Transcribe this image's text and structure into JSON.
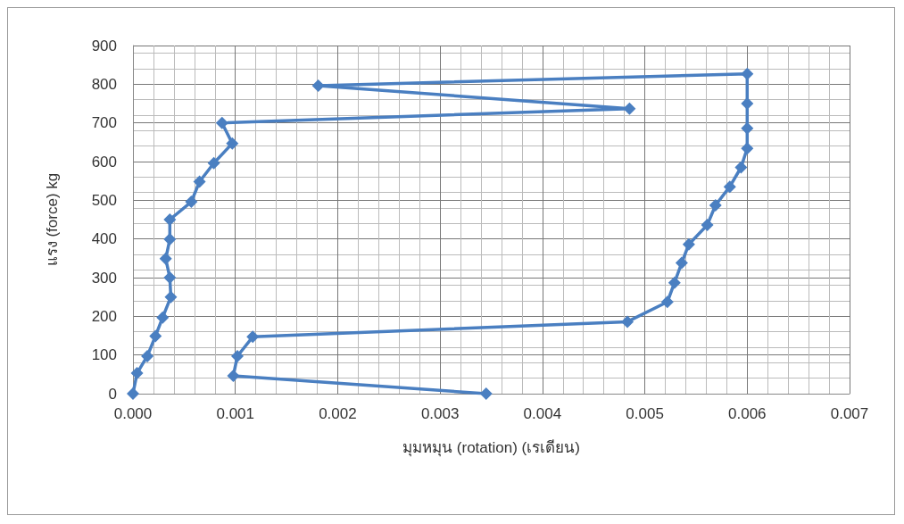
{
  "chart_data": {
    "type": "line",
    "xlabel": "มุมหมุน (rotation) (เรเดียน)",
    "ylabel": "แรง (force) kg",
    "series": [
      {
        "color": "#4a7fc1",
        "x": [
          0,
          4e-05,
          0.00014,
          0.00022,
          0.00029,
          0.00037,
          0.00036,
          0.00032,
          0.00036,
          0.00036,
          0.00057,
          0.00065,
          0.00079,
          0.00097,
          0.00087,
          0.00485,
          0.00181,
          0.006,
          0.006,
          0.006,
          0.006,
          0.00594,
          0.00583,
          0.00569,
          0.00561,
          0.00543,
          0.00536,
          0.00529,
          0.00522,
          0.00483,
          0.00117,
          0.00102,
          0.00098,
          0.00345
        ],
        "values": [
          0,
          53,
          97,
          149,
          197,
          250,
          300,
          349,
          399,
          450,
          496,
          548,
          596,
          647,
          700,
          737,
          796,
          827,
          750,
          686,
          634,
          585,
          535,
          487,
          436,
          386,
          338,
          287,
          237,
          186,
          147,
          97,
          46,
          0
        ]
      }
    ],
    "xlim": [
      0,
      0.007
    ],
    "xticks": [
      {
        "value": 0,
        "label": "0.000"
      },
      {
        "value": 0.001,
        "label": "0.001"
      },
      {
        "value": 0.002,
        "label": "0.002"
      },
      {
        "value": 0.003,
        "label": "0.003"
      },
      {
        "value": 0.004,
        "label": "0.004"
      },
      {
        "value": 0.005,
        "label": "0.005"
      },
      {
        "value": 0.006,
        "label": "0.006"
      },
      {
        "value": 0.007,
        "label": "0.007"
      }
    ],
    "ylim": [
      0,
      900
    ],
    "yticks": [
      0,
      100,
      200,
      300,
      400,
      500,
      600,
      700,
      800,
      900
    ],
    "grid": true,
    "marker": "diamond",
    "line_style": "solid"
  }
}
